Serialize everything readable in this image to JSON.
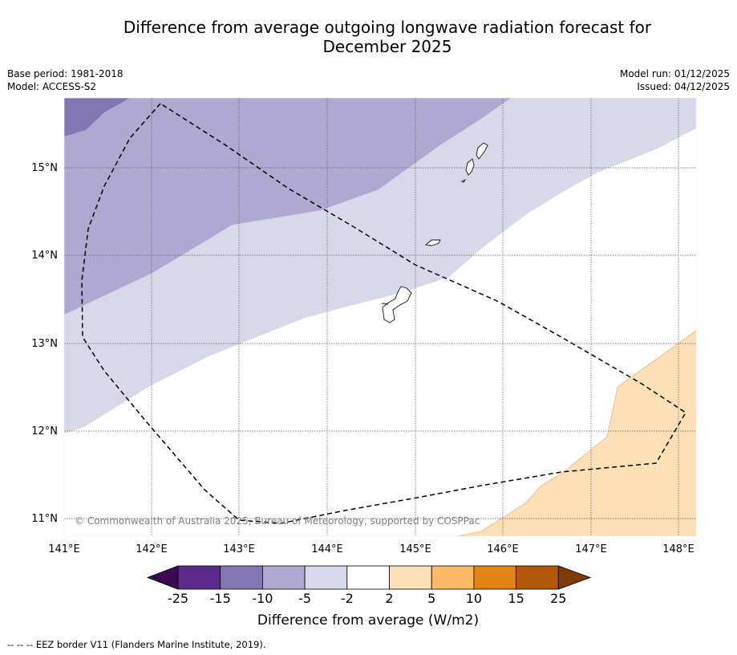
{
  "title": {
    "line1": "Difference from average outgoing longwave radiation forecast for",
    "line2": "December 2025"
  },
  "meta": {
    "base_period": "Base period: 1981-2018",
    "model": "Model: ACCESS-S2",
    "model_run": "Model run: 01/12/2025",
    "issued": "Issued: 04/12/2025"
  },
  "map": {
    "lat_labels": [
      "15°N",
      "14°N",
      "13°N",
      "12°N",
      "11°N"
    ],
    "lon_labels": [
      "141°E",
      "142°E",
      "143°E",
      "144°E",
      "145°E",
      "146°E",
      "147°E",
      "148°E"
    ],
    "copyright": "© Commonwealth of Australia 2025, Bureau of Meteorology, supported by COSPPac",
    "colors": {
      "band_m15_m10": "#8476b0",
      "band_m10_m5": "#afa8d0",
      "band_m5_m2": "#d8d8ea",
      "band_2_5": "#fde0b6"
    }
  },
  "colorbar": {
    "ticks": [
      "-25",
      "-15",
      "-10",
      "-5",
      "-2",
      "2",
      "5",
      "10",
      "15",
      "25"
    ],
    "colors": [
      "#5c2a8a",
      "#8476b0",
      "#afa8d0",
      "#d8d8ea",
      "#ffffff",
      "#fde0b6",
      "#fdb863",
      "#e08214",
      "#b35806"
    ],
    "low_extend_color": "#3b0a52",
    "high_extend_color": "#7f3b08",
    "label": "Difference from average (W/m2)"
  },
  "footnote": "--  --  -- EEZ border V11 (Flanders Marine Institute, 2019)."
}
